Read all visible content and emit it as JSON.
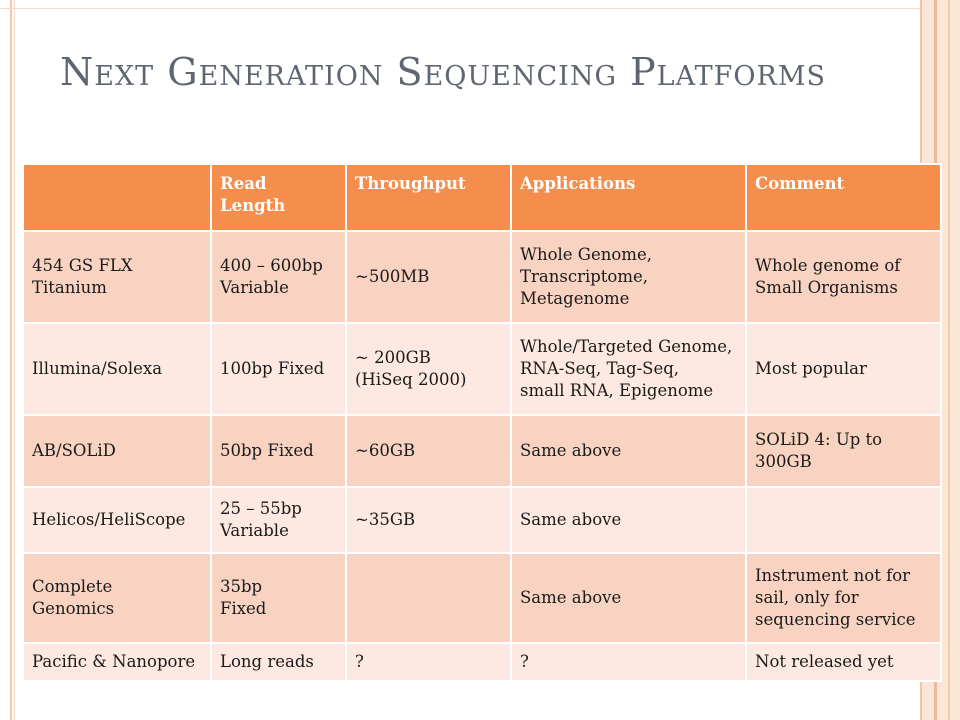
{
  "title": "Next Generation Sequencing Platforms",
  "table": {
    "headers": [
      "",
      "Read\nLength",
      "Throughput",
      "Applications",
      "Comment"
    ],
    "rows": [
      [
        "454 GS FLX\nTitanium",
        "400 – 600bp\nVariable",
        "~500MB",
        "Whole Genome,\nTranscriptome,\nMetagenome",
        "Whole genome of\nSmall Organisms"
      ],
      [
        "Illumina/Solexa",
        "100bp Fixed",
        "~ 200GB\n(HiSeq 2000)",
        "Whole/Targeted Genome,\nRNA-Seq, Tag-Seq,\nsmall RNA, Epigenome",
        "Most popular"
      ],
      [
        "AB/SOLiD",
        "50bp Fixed",
        "~60GB",
        "Same above",
        "SOLiD 4: Up to\n300GB"
      ],
      [
        "Helicos/HeliScope",
        "25 – 55bp\nVariable",
        "~35GB",
        "Same above",
        ""
      ],
      [
        "Complete\nGenomics",
        "35bp\nFixed",
        "",
        "Same above",
        "Instrument not for\nsail, only for\nsequencing service"
      ],
      [
        "Pacific & Nanopore",
        "Long reads",
        "?",
        "?",
        "Not released yet"
      ]
    ]
  }
}
